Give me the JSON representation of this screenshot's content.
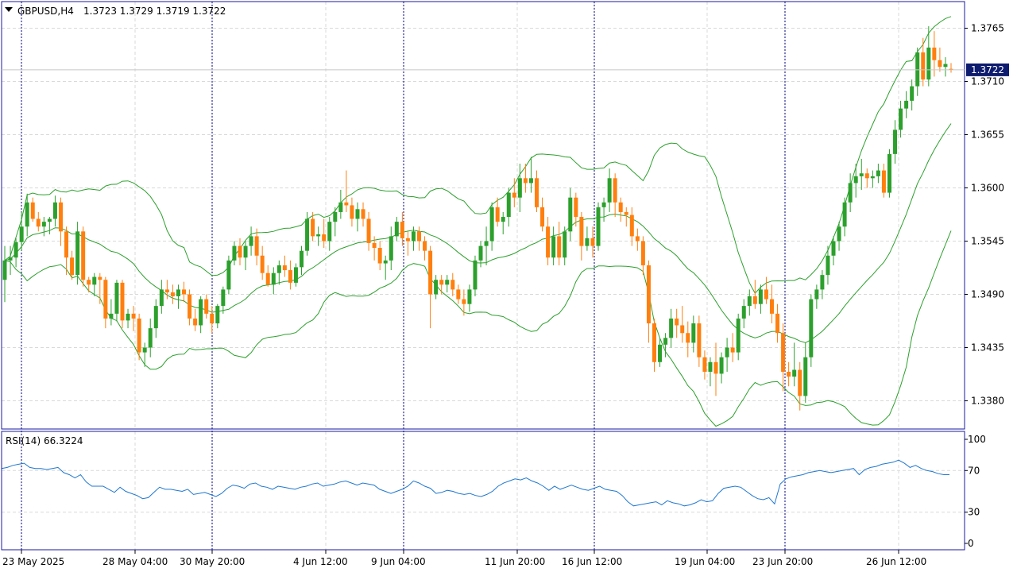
{
  "header": {
    "symbol": "GBPUSD,H4",
    "ohlc": "1.3723 1.3729 1.3719 1.3722"
  },
  "rsi_header": "RSI(14) 66.3224",
  "price_tag": "1.3722",
  "colors": {
    "bull": "#2ca02c",
    "bear": "#ff7f0e",
    "band": "#2ca02c",
    "rsi": "#1f77d0",
    "grid": "#d9d9d9",
    "frame": "#1a1aa0",
    "tag_bg": "#0d1c6e",
    "session_line": "#00008b"
  },
  "chart_data": [
    {
      "type": "candlestick",
      "title": "GBPUSD,H4",
      "ylim": [
        1.3325,
        1.3805
      ],
      "y_ticks": [
        1.338,
        1.3435,
        1.349,
        1.3545,
        1.36,
        1.3655,
        1.371,
        1.3765
      ],
      "x_ticks": [
        "23 May 2025",
        "28 May 04:00",
        "30 May 20:00",
        "4 Jun 12:00",
        "9 Jun 04:00",
        "11 Jun 20:00",
        "16 Jun 12:00",
        "19 Jun 04:00",
        "23 Jun 20:00",
        "26 Jun 12:00"
      ],
      "current_price": 1.3722,
      "grid": true,
      "indicators": [
        "Bollinger Bands"
      ],
      "ohlc": [
        [
          1.3505,
          1.354,
          1.3482,
          1.3525
        ],
        [
          1.3525,
          1.354,
          1.351,
          1.3528
        ],
        [
          1.3528,
          1.3548,
          1.3518,
          1.3544
        ],
        [
          1.3544,
          1.3575,
          1.3535,
          1.356
        ],
        [
          1.356,
          1.3594,
          1.355,
          1.3585
        ],
        [
          1.3585,
          1.359,
          1.3565,
          1.3568
        ],
        [
          1.3568,
          1.3575,
          1.3555,
          1.356
        ],
        [
          1.356,
          1.357,
          1.355,
          1.3565
        ],
        [
          1.3565,
          1.357,
          1.3552,
          1.3568
        ],
        [
          1.3568,
          1.3592,
          1.356,
          1.3585
        ],
        [
          1.3585,
          1.359,
          1.354,
          1.3555
        ],
        [
          1.3555,
          1.356,
          1.351,
          1.3528
        ],
        [
          1.3528,
          1.3535,
          1.3505,
          1.351
        ],
        [
          1.351,
          1.3565,
          1.35,
          1.3555
        ],
        [
          1.3555,
          1.356,
          1.3498,
          1.3505
        ],
        [
          1.3505,
          1.3508,
          1.3492,
          1.35
        ],
        [
          1.35,
          1.3512,
          1.3488,
          1.3508
        ],
        [
          1.3508,
          1.3512,
          1.348,
          1.3505
        ],
        [
          1.3505,
          1.3508,
          1.3455,
          1.3465
        ],
        [
          1.3465,
          1.3485,
          1.3458,
          1.347
        ],
        [
          1.347,
          1.3505,
          1.3462,
          1.3502
        ],
        [
          1.3502,
          1.3505,
          1.3455,
          1.3463
        ],
        [
          1.3463,
          1.3475,
          1.3455,
          1.347
        ],
        [
          1.347,
          1.3478,
          1.3452,
          1.3465
        ],
        [
          1.3465,
          1.347,
          1.3422,
          1.343
        ],
        [
          1.343,
          1.344,
          1.3415,
          1.3435
        ],
        [
          1.3435,
          1.3465,
          1.3425,
          1.3455
        ],
        [
          1.3455,
          1.3485,
          1.3445,
          1.3478
        ],
        [
          1.3478,
          1.3505,
          1.347,
          1.3495
        ],
        [
          1.3495,
          1.3505,
          1.3485,
          1.3492
        ],
        [
          1.3492,
          1.35,
          1.348,
          1.3488
        ],
        [
          1.3488,
          1.35,
          1.3475,
          1.3495
        ],
        [
          1.3495,
          1.3503,
          1.3482,
          1.349
        ],
        [
          1.349,
          1.3495,
          1.3458,
          1.3465
        ],
        [
          1.3465,
          1.3475,
          1.3452,
          1.3458
        ],
        [
          1.3458,
          1.3488,
          1.345,
          1.3485
        ],
        [
          1.3485,
          1.349,
          1.3465,
          1.347
        ],
        [
          1.347,
          1.3478,
          1.345,
          1.346
        ],
        [
          1.346,
          1.348,
          1.3455,
          1.3478
        ],
        [
          1.3478,
          1.3498,
          1.347,
          1.3495
        ],
        [
          1.3495,
          1.353,
          1.349,
          1.3525
        ],
        [
          1.3525,
          1.3545,
          1.352,
          1.354
        ],
        [
          1.354,
          1.3548,
          1.352,
          1.3528
        ],
        [
          1.3528,
          1.3545,
          1.3515,
          1.354
        ],
        [
          1.354,
          1.356,
          1.353,
          1.355
        ],
        [
          1.355,
          1.3558,
          1.352,
          1.353
        ],
        [
          1.353,
          1.354,
          1.3505,
          1.3512
        ],
        [
          1.3512,
          1.352,
          1.3498,
          1.35
        ],
        [
          1.35,
          1.3518,
          1.349,
          1.3512
        ],
        [
          1.3512,
          1.3525,
          1.35,
          1.352
        ],
        [
          1.352,
          1.353,
          1.3508,
          1.3515
        ],
        [
          1.3515,
          1.3525,
          1.3495,
          1.3502
        ],
        [
          1.3502,
          1.3522,
          1.3498,
          1.3518
        ],
        [
          1.3518,
          1.354,
          1.351,
          1.3535
        ],
        [
          1.3535,
          1.3575,
          1.353,
          1.3568
        ],
        [
          1.3568,
          1.3575,
          1.3545,
          1.355
        ],
        [
          1.355,
          1.356,
          1.354,
          1.3552
        ],
        [
          1.3552,
          1.3568,
          1.3538,
          1.3545
        ],
        [
          1.3545,
          1.357,
          1.3535,
          1.3565
        ],
        [
          1.3565,
          1.358,
          1.355,
          1.3575
        ],
        [
          1.3575,
          1.3598,
          1.3568,
          1.3585
        ],
        [
          1.3585,
          1.3618,
          1.3575,
          1.3582
        ],
        [
          1.3582,
          1.359,
          1.356,
          1.3568
        ],
        [
          1.3568,
          1.3585,
          1.3555,
          1.3578
        ],
        [
          1.3578,
          1.3585,
          1.356,
          1.3568
        ],
        [
          1.3568,
          1.3575,
          1.3535,
          1.3543
        ],
        [
          1.3543,
          1.355,
          1.3525,
          1.3538
        ],
        [
          1.3538,
          1.3545,
          1.3515,
          1.3522
        ],
        [
          1.3522,
          1.353,
          1.3505,
          1.3525
        ],
        [
          1.3525,
          1.356,
          1.3515,
          1.355
        ],
        [
          1.355,
          1.357,
          1.3545,
          1.3565
        ],
        [
          1.3565,
          1.3575,
          1.354,
          1.3548
        ],
        [
          1.3548,
          1.3555,
          1.353,
          1.3545
        ],
        [
          1.3545,
          1.356,
          1.3535,
          1.3555
        ],
        [
          1.3555,
          1.356,
          1.3535,
          1.3545
        ],
        [
          1.3545,
          1.355,
          1.3525,
          1.3535
        ],
        [
          1.3535,
          1.354,
          1.3455,
          1.349
        ],
        [
          1.349,
          1.351,
          1.3485,
          1.3505
        ],
        [
          1.3505,
          1.351,
          1.349,
          1.35
        ],
        [
          1.35,
          1.351,
          1.3492,
          1.3505
        ],
        [
          1.3505,
          1.3512,
          1.3488,
          1.3495
        ],
        [
          1.3495,
          1.35,
          1.348,
          1.3485
        ],
        [
          1.3485,
          1.3495,
          1.3468,
          1.348
        ],
        [
          1.348,
          1.35,
          1.3472,
          1.3495
        ],
        [
          1.3495,
          1.353,
          1.3488,
          1.3525
        ],
        [
          1.3525,
          1.3545,
          1.3518,
          1.354
        ],
        [
          1.354,
          1.356,
          1.352,
          1.3545
        ],
        [
          1.3545,
          1.3585,
          1.3535,
          1.358
        ],
        [
          1.358,
          1.359,
          1.356,
          1.3565
        ],
        [
          1.3565,
          1.3575,
          1.3552,
          1.357
        ],
        [
          1.357,
          1.36,
          1.356,
          1.3595
        ],
        [
          1.3595,
          1.361,
          1.358,
          1.359
        ],
        [
          1.359,
          1.3625,
          1.3575,
          1.361
        ],
        [
          1.361,
          1.3625,
          1.3595,
          1.3605
        ],
        [
          1.3605,
          1.3632,
          1.3595,
          1.361
        ],
        [
          1.361,
          1.3618,
          1.3575,
          1.358
        ],
        [
          1.358,
          1.359,
          1.3555,
          1.356
        ],
        [
          1.356,
          1.357,
          1.352,
          1.3528
        ],
        [
          1.3528,
          1.356,
          1.352,
          1.355
        ],
        [
          1.355,
          1.3565,
          1.352,
          1.3528
        ],
        [
          1.3528,
          1.356,
          1.352,
          1.3555
        ],
        [
          1.3555,
          1.36,
          1.3545,
          1.359
        ],
        [
          1.359,
          1.3595,
          1.356,
          1.357
        ],
        [
          1.357,
          1.3575,
          1.3525,
          1.354
        ],
        [
          1.354,
          1.356,
          1.3535,
          1.3548
        ],
        [
          1.3548,
          1.356,
          1.3528,
          1.354
        ],
        [
          1.354,
          1.3585,
          1.3535,
          1.358
        ],
        [
          1.358,
          1.359,
          1.3565,
          1.3585
        ],
        [
          1.3585,
          1.362,
          1.3575,
          1.361
        ],
        [
          1.361,
          1.3615,
          1.357,
          1.3585
        ],
        [
          1.3585,
          1.359,
          1.3565,
          1.3575
        ],
        [
          1.3575,
          1.358,
          1.356,
          1.3572
        ],
        [
          1.3572,
          1.358,
          1.354,
          1.355
        ],
        [
          1.355,
          1.3558,
          1.3535,
          1.3545
        ],
        [
          1.3545,
          1.355,
          1.351,
          1.352
        ],
        [
          1.352,
          1.3525,
          1.344,
          1.346
        ],
        [
          1.346,
          1.3465,
          1.341,
          1.342
        ],
        [
          1.342,
          1.3445,
          1.3415,
          1.3438
        ],
        [
          1.3438,
          1.345,
          1.3425,
          1.3445
        ],
        [
          1.3445,
          1.3475,
          1.3435,
          1.3465
        ],
        [
          1.3465,
          1.3475,
          1.3445,
          1.3458
        ],
        [
          1.3458,
          1.3478,
          1.344,
          1.345
        ],
        [
          1.345,
          1.3462,
          1.3425,
          1.344
        ],
        [
          1.344,
          1.3468,
          1.343,
          1.346
        ],
        [
          1.346,
          1.3468,
          1.3415,
          1.3425
        ],
        [
          1.3425,
          1.3432,
          1.3402,
          1.341
        ],
        [
          1.341,
          1.3425,
          1.3395,
          1.342
        ],
        [
          1.342,
          1.344,
          1.3385,
          1.3408
        ],
        [
          1.3408,
          1.343,
          1.3398,
          1.3425
        ],
        [
          1.3425,
          1.3445,
          1.341,
          1.3435
        ],
        [
          1.3435,
          1.345,
          1.342,
          1.343
        ],
        [
          1.343,
          1.347,
          1.3422,
          1.3465
        ],
        [
          1.3465,
          1.3485,
          1.3455,
          1.3478
        ],
        [
          1.3478,
          1.3495,
          1.3468,
          1.3488
        ],
        [
          1.3488,
          1.3505,
          1.3475,
          1.348
        ],
        [
          1.348,
          1.35,
          1.347,
          1.3495
        ],
        [
          1.3495,
          1.3508,
          1.348,
          1.3485
        ],
        [
          1.3485,
          1.35,
          1.346,
          1.347
        ],
        [
          1.347,
          1.348,
          1.344,
          1.345
        ],
        [
          1.345,
          1.346,
          1.339,
          1.341
        ],
        [
          1.341,
          1.342,
          1.3395,
          1.3405
        ],
        [
          1.3405,
          1.344,
          1.3395,
          1.3412
        ],
        [
          1.3412,
          1.342,
          1.337,
          1.3385
        ],
        [
          1.3385,
          1.344,
          1.3378,
          1.3425
        ],
        [
          1.3425,
          1.349,
          1.3415,
          1.3485
        ],
        [
          1.3485,
          1.35,
          1.3475,
          1.3495
        ],
        [
          1.3495,
          1.3515,
          1.3485,
          1.351
        ],
        [
          1.351,
          1.354,
          1.35,
          1.353
        ],
        [
          1.353,
          1.355,
          1.352,
          1.3545
        ],
        [
          1.3545,
          1.3565,
          1.3535,
          1.356
        ],
        [
          1.356,
          1.359,
          1.355,
          1.3585
        ],
        [
          1.3585,
          1.3615,
          1.3575,
          1.3605
        ],
        [
          1.3605,
          1.3625,
          1.359,
          1.3612
        ],
        [
          1.3612,
          1.363,
          1.3598,
          1.3615
        ],
        [
          1.3615,
          1.362,
          1.36,
          1.361
        ],
        [
          1.361,
          1.3618,
          1.36,
          1.3612
        ],
        [
          1.3612,
          1.3625,
          1.3605,
          1.3618
        ],
        [
          1.3618,
          1.3625,
          1.359,
          1.3595
        ],
        [
          1.3595,
          1.364,
          1.359,
          1.3635
        ],
        [
          1.3635,
          1.367,
          1.3625,
          1.366
        ],
        [
          1.366,
          1.369,
          1.3652,
          1.3682
        ],
        [
          1.3682,
          1.37,
          1.3672,
          1.369
        ],
        [
          1.369,
          1.3712,
          1.368,
          1.3705
        ],
        [
          1.3705,
          1.3745,
          1.3695,
          1.374
        ],
        [
          1.374,
          1.3755,
          1.3705,
          1.3712
        ],
        [
          1.3712,
          1.3767,
          1.3705,
          1.3745
        ],
        [
          1.3745,
          1.3762,
          1.3715,
          1.3732
        ],
        [
          1.3732,
          1.3745,
          1.372,
          1.3725
        ],
        [
          1.3725,
          1.3735,
          1.3715,
          1.3728
        ],
        [
          1.3723,
          1.3729,
          1.3719,
          1.3722
        ]
      ]
    },
    {
      "type": "line",
      "title": "RSI(14) 66.3224",
      "ylim": [
        0,
        100
      ],
      "y_ticks": [
        0,
        30,
        70,
        100
      ],
      "series": [
        {
          "name": "RSI(14)",
          "values": [
            72,
            73,
            75,
            76,
            77,
            73,
            72,
            72,
            71,
            72,
            73,
            68,
            66,
            63,
            66,
            59,
            55,
            55,
            55,
            52,
            49,
            54,
            50,
            48,
            46,
            43,
            44,
            49,
            54,
            52,
            52,
            51,
            50,
            52,
            47,
            48,
            49,
            47,
            45,
            48,
            53,
            56,
            55,
            53,
            57,
            58,
            55,
            54,
            52,
            55,
            54,
            53,
            52,
            54,
            55,
            57,
            58,
            55,
            56,
            57,
            59,
            60,
            58,
            56,
            58,
            57,
            56,
            52,
            50,
            48,
            50,
            52,
            55,
            60,
            58,
            55,
            53,
            48,
            49,
            51,
            50,
            48,
            47,
            48,
            46,
            45,
            47,
            50,
            55,
            58,
            60,
            62,
            61,
            63,
            60,
            58,
            55,
            51,
            55,
            52,
            54,
            56,
            54,
            52,
            51,
            53,
            55,
            52,
            51,
            50,
            46,
            40,
            36,
            37,
            38,
            39,
            40,
            37,
            41,
            39,
            38,
            36,
            37,
            39,
            42,
            40,
            41,
            48,
            53,
            54,
            55,
            54,
            50,
            46,
            43,
            42,
            44,
            38,
            57,
            62,
            64,
            65,
            66,
            68,
            69,
            70,
            69,
            68,
            69,
            70,
            71,
            72,
            66,
            71,
            73,
            74,
            76,
            77,
            78,
            80,
            77,
            73,
            75,
            72,
            70,
            69,
            67,
            66,
            66
          ]
        }
      ]
    }
  ]
}
